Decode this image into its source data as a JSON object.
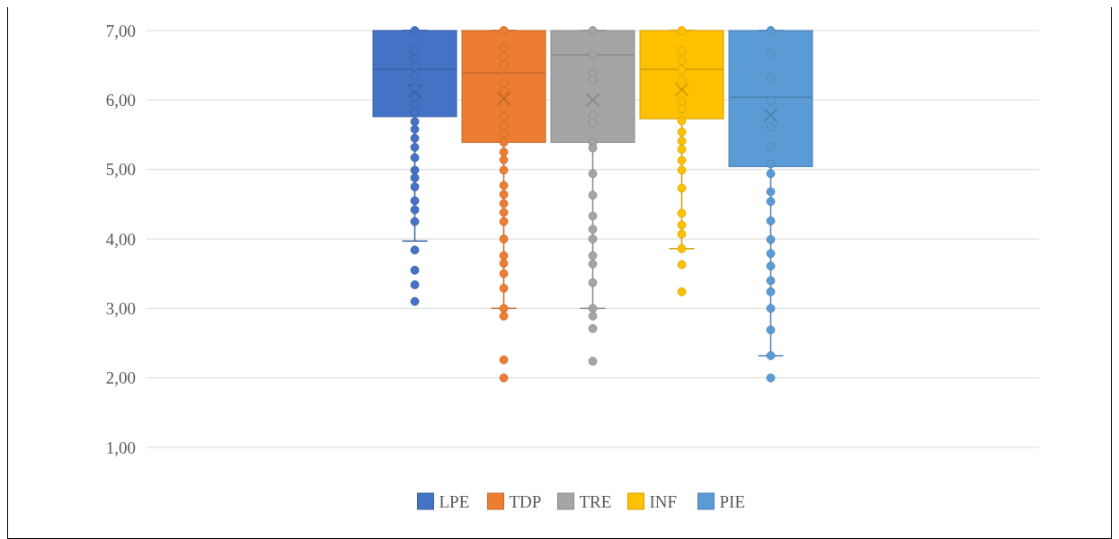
{
  "chart_data": {
    "type": "box",
    "categories": [
      null
    ],
    "ylim": [
      1,
      7
    ],
    "yticks": [
      {
        "value": 1,
        "label": "1,00"
      },
      {
        "value": 2,
        "label": "2,00"
      },
      {
        "value": 3,
        "label": "3,00"
      },
      {
        "value": 4,
        "label": "4,00"
      },
      {
        "value": 5,
        "label": "5,00"
      },
      {
        "value": 6,
        "label": "6,00"
      },
      {
        "value": 7,
        "label": "7,00"
      }
    ],
    "grid": "y",
    "legend": "bottom",
    "marker": "circle",
    "series": [
      {
        "type": "box",
        "name": "LPE",
        "color": "#4472c4",
        "boxes": [
          {
            "low": 3.97,
            "q1": 5.76,
            "median": 6.44,
            "q3": 7.0,
            "high": 7.0,
            "mean": 6.13,
            "outliers": [
              3.84,
              3.55,
              3.34,
              3.1
            ]
          }
        ]
      },
      {
        "type": "box",
        "name": "TDP",
        "color": "#ed7d31",
        "boxes": [
          {
            "low": 3.0,
            "q1": 5.39,
            "median": 6.39,
            "q3": 7.0,
            "high": 7.0,
            "mean": 6.02,
            "outliers": [
              2.89,
              2.26,
              2.0
            ]
          }
        ]
      },
      {
        "type": "box",
        "name": "TRE",
        "color": "#a5a5a5",
        "boxes": [
          {
            "low": 3.0,
            "q1": 5.39,
            "median": 6.65,
            "q3": 7.0,
            "high": 7.0,
            "mean": 6.0,
            "outliers": [
              2.89,
              2.71,
              2.24
            ]
          }
        ]
      },
      {
        "type": "box",
        "name": "INF",
        "color": "#ffc000",
        "boxes": [
          {
            "low": 3.86,
            "q1": 5.73,
            "median": 6.44,
            "q3": 7.0,
            "high": 7.0,
            "mean": 6.15,
            "outliers": [
              3.63,
              3.24
            ]
          }
        ]
      },
      {
        "type": "box",
        "name": "PIE",
        "color": "#5b9bd5",
        "boxes": [
          {
            "low": 2.32,
            "q1": 5.04,
            "median": 6.04,
            "q3": 7.0,
            "high": 7.0,
            "mean": 5.78,
            "outliers": [
              2.0
            ]
          }
        ]
      },
      {
        "type": "scatter",
        "color": "#4472c4",
        "x": [
          null,
          null,
          null,
          null,
          null,
          null,
          null,
          null,
          null,
          null,
          null,
          null,
          null,
          null,
          null,
          null,
          null,
          null,
          null,
          null
        ],
        "values": [
          7.0,
          6.71,
          6.59,
          6.48,
          6.35,
          6.18,
          6.04,
          5.93,
          5.82,
          5.69,
          5.58,
          5.45,
          5.32,
          5.17,
          4.99,
          4.88,
          4.75,
          4.55,
          4.42,
          4.25
        ]
      },
      {
        "type": "scatter",
        "color": "#ed7d31",
        "x": [
          null,
          null,
          null,
          null,
          null,
          null,
          null,
          null,
          null,
          null,
          null,
          null,
          null,
          null,
          null,
          null,
          null,
          null,
          null,
          null,
          null,
          null,
          null,
          null,
          null
        ],
        "values": [
          7.0,
          6.75,
          6.62,
          6.5,
          6.24,
          6.13,
          5.89,
          5.76,
          5.63,
          5.52,
          5.39,
          5.25,
          5.14,
          4.99,
          4.77,
          4.64,
          4.51,
          4.38,
          4.25,
          4.0,
          3.76,
          3.65,
          3.5,
          3.29,
          3.0
        ]
      },
      {
        "type": "scatter",
        "color": "#a5a5a5",
        "x": [
          null,
          null,
          null,
          null,
          null,
          null,
          null,
          null,
          null,
          null,
          null,
          null,
          null,
          null,
          null,
          null,
          null
        ],
        "values": [
          7.0,
          6.65,
          6.39,
          6.29,
          5.78,
          5.67,
          5.39,
          5.31,
          4.94,
          4.63,
          4.33,
          4.14,
          4.0,
          3.76,
          3.64,
          3.37,
          3.0
        ]
      },
      {
        "type": "scatter",
        "color": "#ffc000",
        "x": [
          null,
          null,
          null,
          null,
          null,
          null,
          null,
          null,
          null,
          null,
          null,
          null,
          null,
          null,
          null,
          null,
          null,
          null
        ],
        "values": [
          7.0,
          6.71,
          6.57,
          6.44,
          6.29,
          5.98,
          5.87,
          5.7,
          5.54,
          5.41,
          5.29,
          5.13,
          4.99,
          4.73,
          4.37,
          4.2,
          4.07,
          3.86
        ]
      },
      {
        "type": "scatter",
        "color": "#5b9bd5",
        "x": [
          null,
          null,
          null,
          null,
          null,
          null,
          null,
          null,
          null,
          null,
          null,
          null,
          null,
          null,
          null,
          null,
          null,
          null,
          null
        ],
        "values": [
          7.0,
          6.67,
          6.31,
          5.99,
          5.61,
          5.33,
          5.08,
          4.94,
          4.68,
          4.54,
          4.26,
          3.99,
          3.79,
          3.61,
          3.4,
          3.24,
          3.0,
          2.69,
          2.32
        ]
      }
    ]
  }
}
